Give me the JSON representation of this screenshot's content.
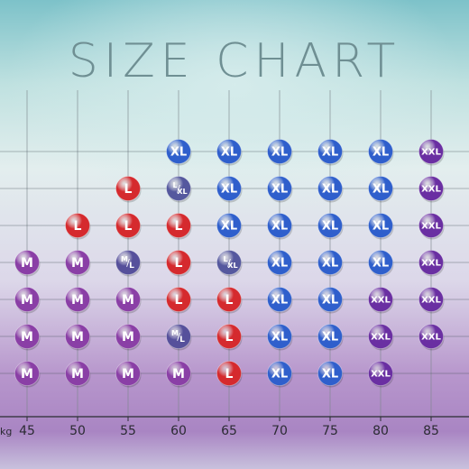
{
  "chart_data": {
    "type": "table",
    "title": "SIZE CHART",
    "x_unit": "kg",
    "x": [
      45,
      50,
      55,
      60,
      65,
      70,
      75,
      80,
      85
    ],
    "rows": [
      [
        "",
        "",
        "",
        "XL",
        "XL",
        "XL",
        "XL",
        "XL",
        "XXL"
      ],
      [
        "",
        "",
        "L",
        "L/XL",
        "XL",
        "XL",
        "XL",
        "XL",
        "XXL"
      ],
      [
        "",
        "L",
        "L",
        "L",
        "XL",
        "XL",
        "XL",
        "XL",
        "XXL"
      ],
      [
        "M",
        "M",
        "M/L",
        "L",
        "L/XL",
        "XL",
        "XL",
        "XL",
        "XXL"
      ],
      [
        "M",
        "M",
        "M",
        "L",
        "L",
        "XL",
        "XL",
        "XXL",
        "XXL"
      ],
      [
        "M",
        "M",
        "M",
        "M/L",
        "L",
        "XL",
        "XL",
        "XXL",
        "XXL"
      ],
      [
        "M",
        "M",
        "M",
        "M",
        "L",
        "XL",
        "XL",
        "XXL",
        ""
      ]
    ],
    "size_colors": {
      "M": "#8a3fa6",
      "M/L": "#56509b",
      "L": "#d52a2e",
      "L/XL": "#55589e",
      "XL": "#2f5fcc",
      "XXL": "#6a2fa2"
    },
    "grid": true
  }
}
